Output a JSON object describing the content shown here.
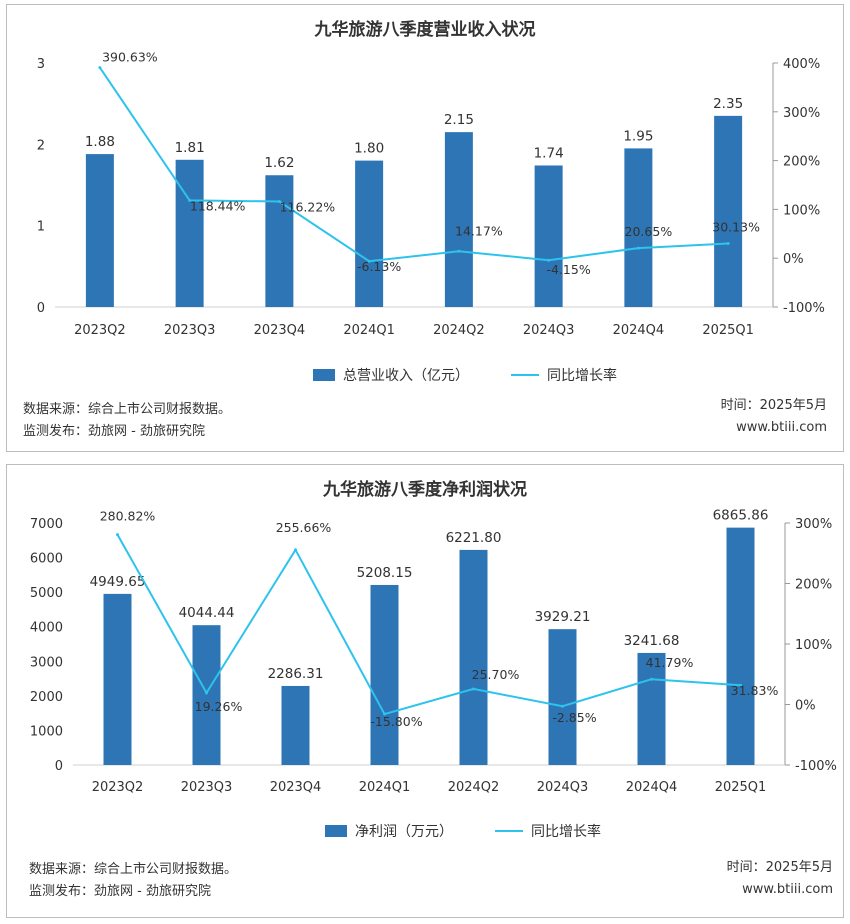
{
  "chart_data": [
    {
      "type": "bar",
      "title": "九华旅游八季度营业收入状况",
      "categories": [
        "2023Q2",
        "2023Q3",
        "2023Q4",
        "2024Q1",
        "2024Q2",
        "2024Q3",
        "2024Q4",
        "2025Q1"
      ],
      "series": [
        {
          "name": "总营业收入（亿元）",
          "type": "bar",
          "axis": "left",
          "values": [
            1.88,
            1.81,
            1.62,
            1.8,
            2.15,
            1.74,
            1.95,
            2.35
          ],
          "labels": [
            "1.88",
            "1.81",
            "1.62",
            "1.80",
            "2.15",
            "1.74",
            "1.95",
            "2.35"
          ]
        },
        {
          "name": "同比增长率",
          "type": "line",
          "axis": "right",
          "values": [
            390.63,
            118.44,
            116.22,
            -6.13,
            14.17,
            -4.15,
            20.65,
            30.13
          ],
          "labels": [
            "390.63%",
            "118.44%",
            "116.22%",
            "-6.13%",
            "14.17%",
            "-4.15%",
            "20.65%",
            "30.13%"
          ]
        }
      ],
      "ylim": [
        0,
        3
      ],
      "yticks": [
        "0",
        "1",
        "2",
        "3"
      ],
      "y2lim": [
        -100,
        400
      ],
      "y2ticks": [
        "-100%",
        "0%",
        "100%",
        "200%",
        "300%",
        "400%"
      ],
      "grid": false,
      "legend": "bottom",
      "bar_color": "#2e75b6",
      "line_color": "#2dc3ec"
    },
    {
      "type": "bar",
      "title": "九华旅游八季度净利润状况",
      "categories": [
        "2023Q2",
        "2023Q3",
        "2023Q4",
        "2024Q1",
        "2024Q2",
        "2024Q3",
        "2024Q4",
        "2025Q1"
      ],
      "series": [
        {
          "name": "净利润（万元）",
          "type": "bar",
          "axis": "left",
          "values": [
            4949.65,
            4044.44,
            2286.31,
            5208.15,
            6221.8,
            3929.21,
            3241.68,
            6865.86
          ],
          "labels": [
            "4949.65",
            "4044.44",
            "2286.31",
            "5208.15",
            "6221.80",
            "3929.21",
            "3241.68",
            "6865.86"
          ]
        },
        {
          "name": "同比增长率",
          "type": "line",
          "axis": "right",
          "values": [
            280.82,
            19.26,
            255.66,
            -15.8,
            25.7,
            -2.85,
            41.79,
            31.83
          ],
          "labels": [
            "280.82%",
            "19.26%",
            "255.66%",
            "-15.80%",
            "25.70%",
            "-2.85%",
            "41.79%",
            "31.83%"
          ]
        }
      ],
      "ylim": [
        0,
        7000
      ],
      "yticks": [
        "0",
        "1000",
        "2000",
        "3000",
        "4000",
        "5000",
        "6000",
        "7000"
      ],
      "y2lim": [
        -100,
        300
      ],
      "y2ticks": [
        "-100%",
        "0%",
        "100%",
        "200%",
        "300%"
      ],
      "grid": false,
      "legend": "bottom",
      "bar_color": "#2e75b6",
      "line_color": "#2dc3ec"
    }
  ],
  "footer": [
    {
      "source": "数据来源：综合上市公司财报数据。",
      "publisher": "监测发布：劲旅网 - 劲旅研究院",
      "time": "时间：2025年5月",
      "site": "www.btiii.com"
    },
    {
      "source": "数据来源：综合上市公司财报数据。",
      "publisher": "监测发布：劲旅网 - 劲旅研究院",
      "time": "时间：2025年5月",
      "site": "www.btiii.com"
    }
  ]
}
